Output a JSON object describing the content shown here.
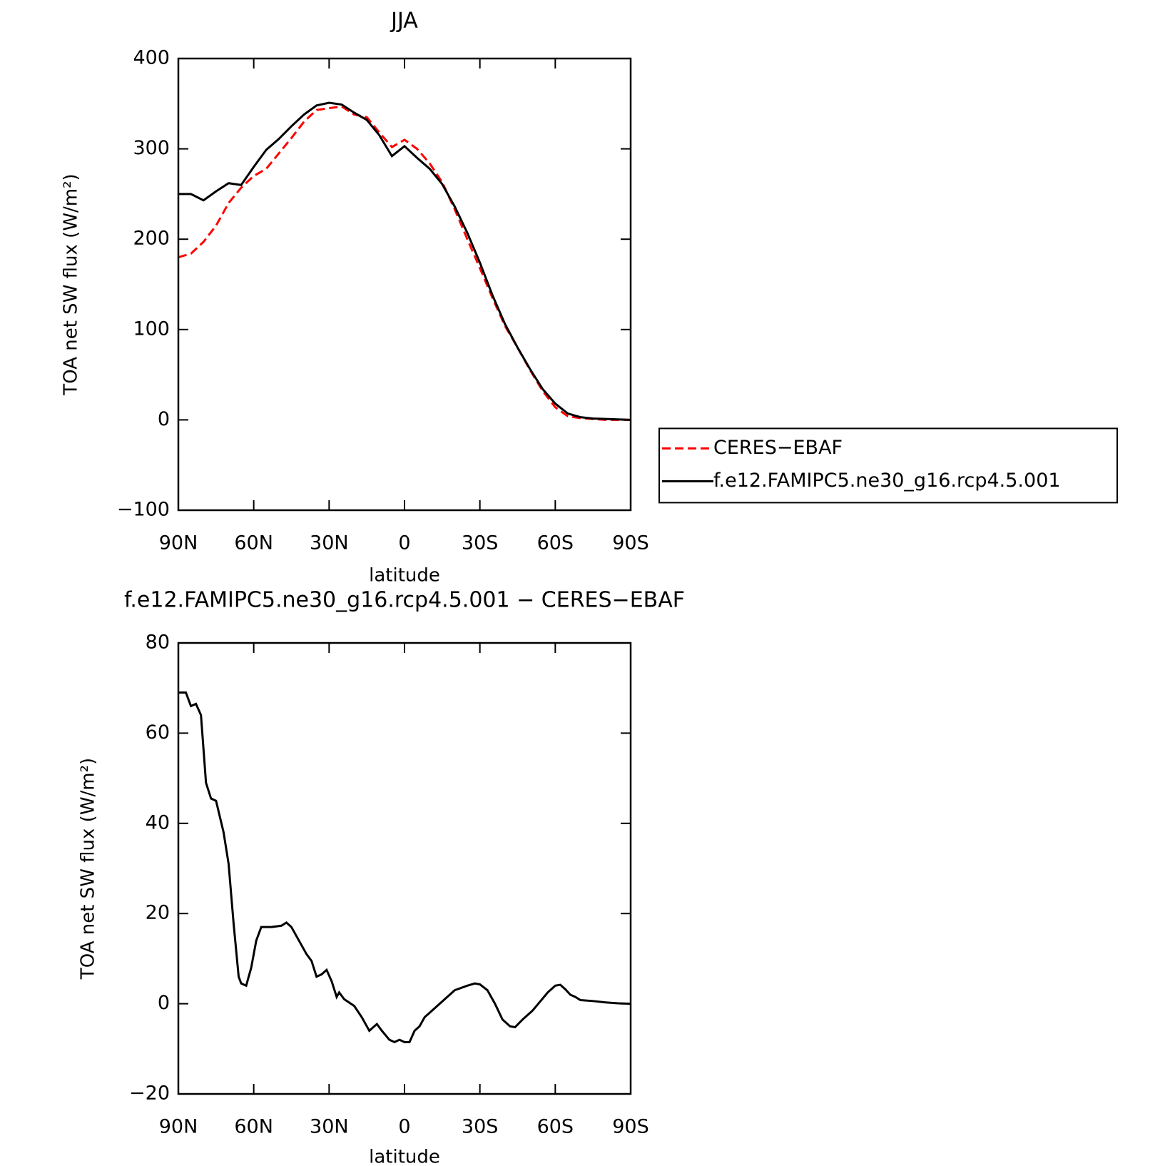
{
  "chart_data": [
    {
      "type": "line",
      "title": "JJA",
      "xlabel": "latitude",
      "ylabel": "TOA net SW flux (W/m²)",
      "x": [
        90,
        85,
        80,
        75,
        70,
        65,
        60,
        55,
        50,
        45,
        40,
        35,
        30,
        25,
        20,
        15,
        10,
        5,
        0,
        -5,
        -10,
        -15,
        -20,
        -25,
        -30,
        -35,
        -40,
        -45,
        -50,
        -55,
        -60,
        -65,
        -70,
        -75,
        -80,
        -85,
        -90
      ],
      "series": [
        {
          "name": "CERES−EBAF",
          "color": "#ff0000",
          "style": "dashed",
          "values": [
            180,
            184,
            197,
            215,
            240,
            257,
            270,
            278,
            295,
            312,
            330,
            343,
            345,
            347,
            338,
            335,
            318,
            302,
            310,
            300,
            284,
            263,
            233,
            200,
            168,
            135,
            104,
            80,
            55,
            32,
            14,
            4,
            2,
            1,
            0,
            0,
            0
          ]
        },
        {
          "name": "f.e12.FAMIPC5.ne30_g16.rcp4.5.001",
          "color": "#000000",
          "style": "solid",
          "values": [
            250,
            250,
            243,
            253,
            262,
            260,
            280,
            299,
            311,
            325,
            338,
            348,
            351,
            349,
            340,
            332,
            315,
            292,
            303,
            290,
            278,
            261,
            236,
            207,
            174,
            138,
            106,
            80,
            56,
            34,
            18,
            7,
            3,
            1.5,
            1,
            0.5,
            0
          ]
        }
      ],
      "xlim": [
        90,
        -90
      ],
      "xticks": [
        {
          "value": 90,
          "label": "90N"
        },
        {
          "value": 60,
          "label": "60N"
        },
        {
          "value": 30,
          "label": "30N"
        },
        0,
        {
          "value": -30,
          "label": "30S"
        },
        {
          "value": -60,
          "label": "60S"
        },
        {
          "value": -90,
          "label": "90S"
        }
      ],
      "ylim": [
        -100,
        400
      ],
      "yticks": [
        {
          "value": -100,
          "label": "−100"
        },
        0,
        100,
        200,
        300,
        400
      ],
      "legend": "right"
    },
    {
      "type": "line",
      "title": "f.e12.FAMIPC5.ne30_g16.rcp4.5.001 − CERES−EBAF",
      "xlabel": "latitude",
      "ylabel": "TOA net SW flux (W/m²)",
      "x": [
        90,
        87,
        85,
        83,
        81,
        79,
        77,
        75,
        72,
        70,
        68,
        66,
        65,
        63,
        61,
        59,
        57,
        53,
        49,
        47,
        45,
        43,
        41,
        39,
        37,
        35,
        33,
        31,
        29,
        27,
        26,
        24,
        20,
        17,
        15,
        14,
        11,
        9,
        6,
        4,
        2,
        0,
        -2,
        -4,
        -6,
        -8,
        -11,
        -14,
        -17,
        -20,
        -25,
        -28,
        -30,
        -33,
        -36,
        -39,
        -42,
        -44,
        -47,
        -51,
        -54,
        -57,
        -60,
        -62,
        -64,
        -66,
        -68,
        -70,
        -75,
        -80,
        -85,
        -90
      ],
      "series": [
        {
          "color": "#000000",
          "style": "solid",
          "values": [
            69,
            69,
            66,
            66.5,
            64,
            49,
            45.5,
            45,
            38,
            31,
            17.7,
            6,
            4.5,
            4,
            8,
            14,
            17,
            17,
            17.3,
            18,
            17,
            15,
            13,
            11,
            9.5,
            6,
            6.5,
            7.5,
            5,
            1.5,
            2.5,
            1,
            -0.5,
            -3,
            -5,
            -6,
            -4.5,
            -6,
            -8,
            -8.5,
            -8,
            -8.5,
            -8.5,
            -6,
            -5,
            -3,
            -1.5,
            0,
            1.5,
            3,
            4,
            4.5,
            4.3,
            3,
            0,
            -3.5,
            -5,
            -5.2,
            -3.5,
            -1.5,
            0.5,
            2.5,
            4,
            4.2,
            3.2,
            2,
            1.5,
            0.8,
            0.6,
            0.3,
            0.1,
            0
          ]
        }
      ],
      "xlim": [
        90,
        -90
      ],
      "xticks": [
        {
          "value": 90,
          "label": "90N"
        },
        {
          "value": 60,
          "label": "60N"
        },
        {
          "value": 30,
          "label": "30N"
        },
        0,
        {
          "value": -30,
          "label": "30S"
        },
        {
          "value": -60,
          "label": "60S"
        },
        {
          "value": -90,
          "label": "90S"
        }
      ],
      "ylim": [
        -20,
        80
      ],
      "yticks": [
        {
          "value": -20,
          "label": "−20"
        },
        0,
        20,
        40,
        60,
        80
      ]
    }
  ]
}
